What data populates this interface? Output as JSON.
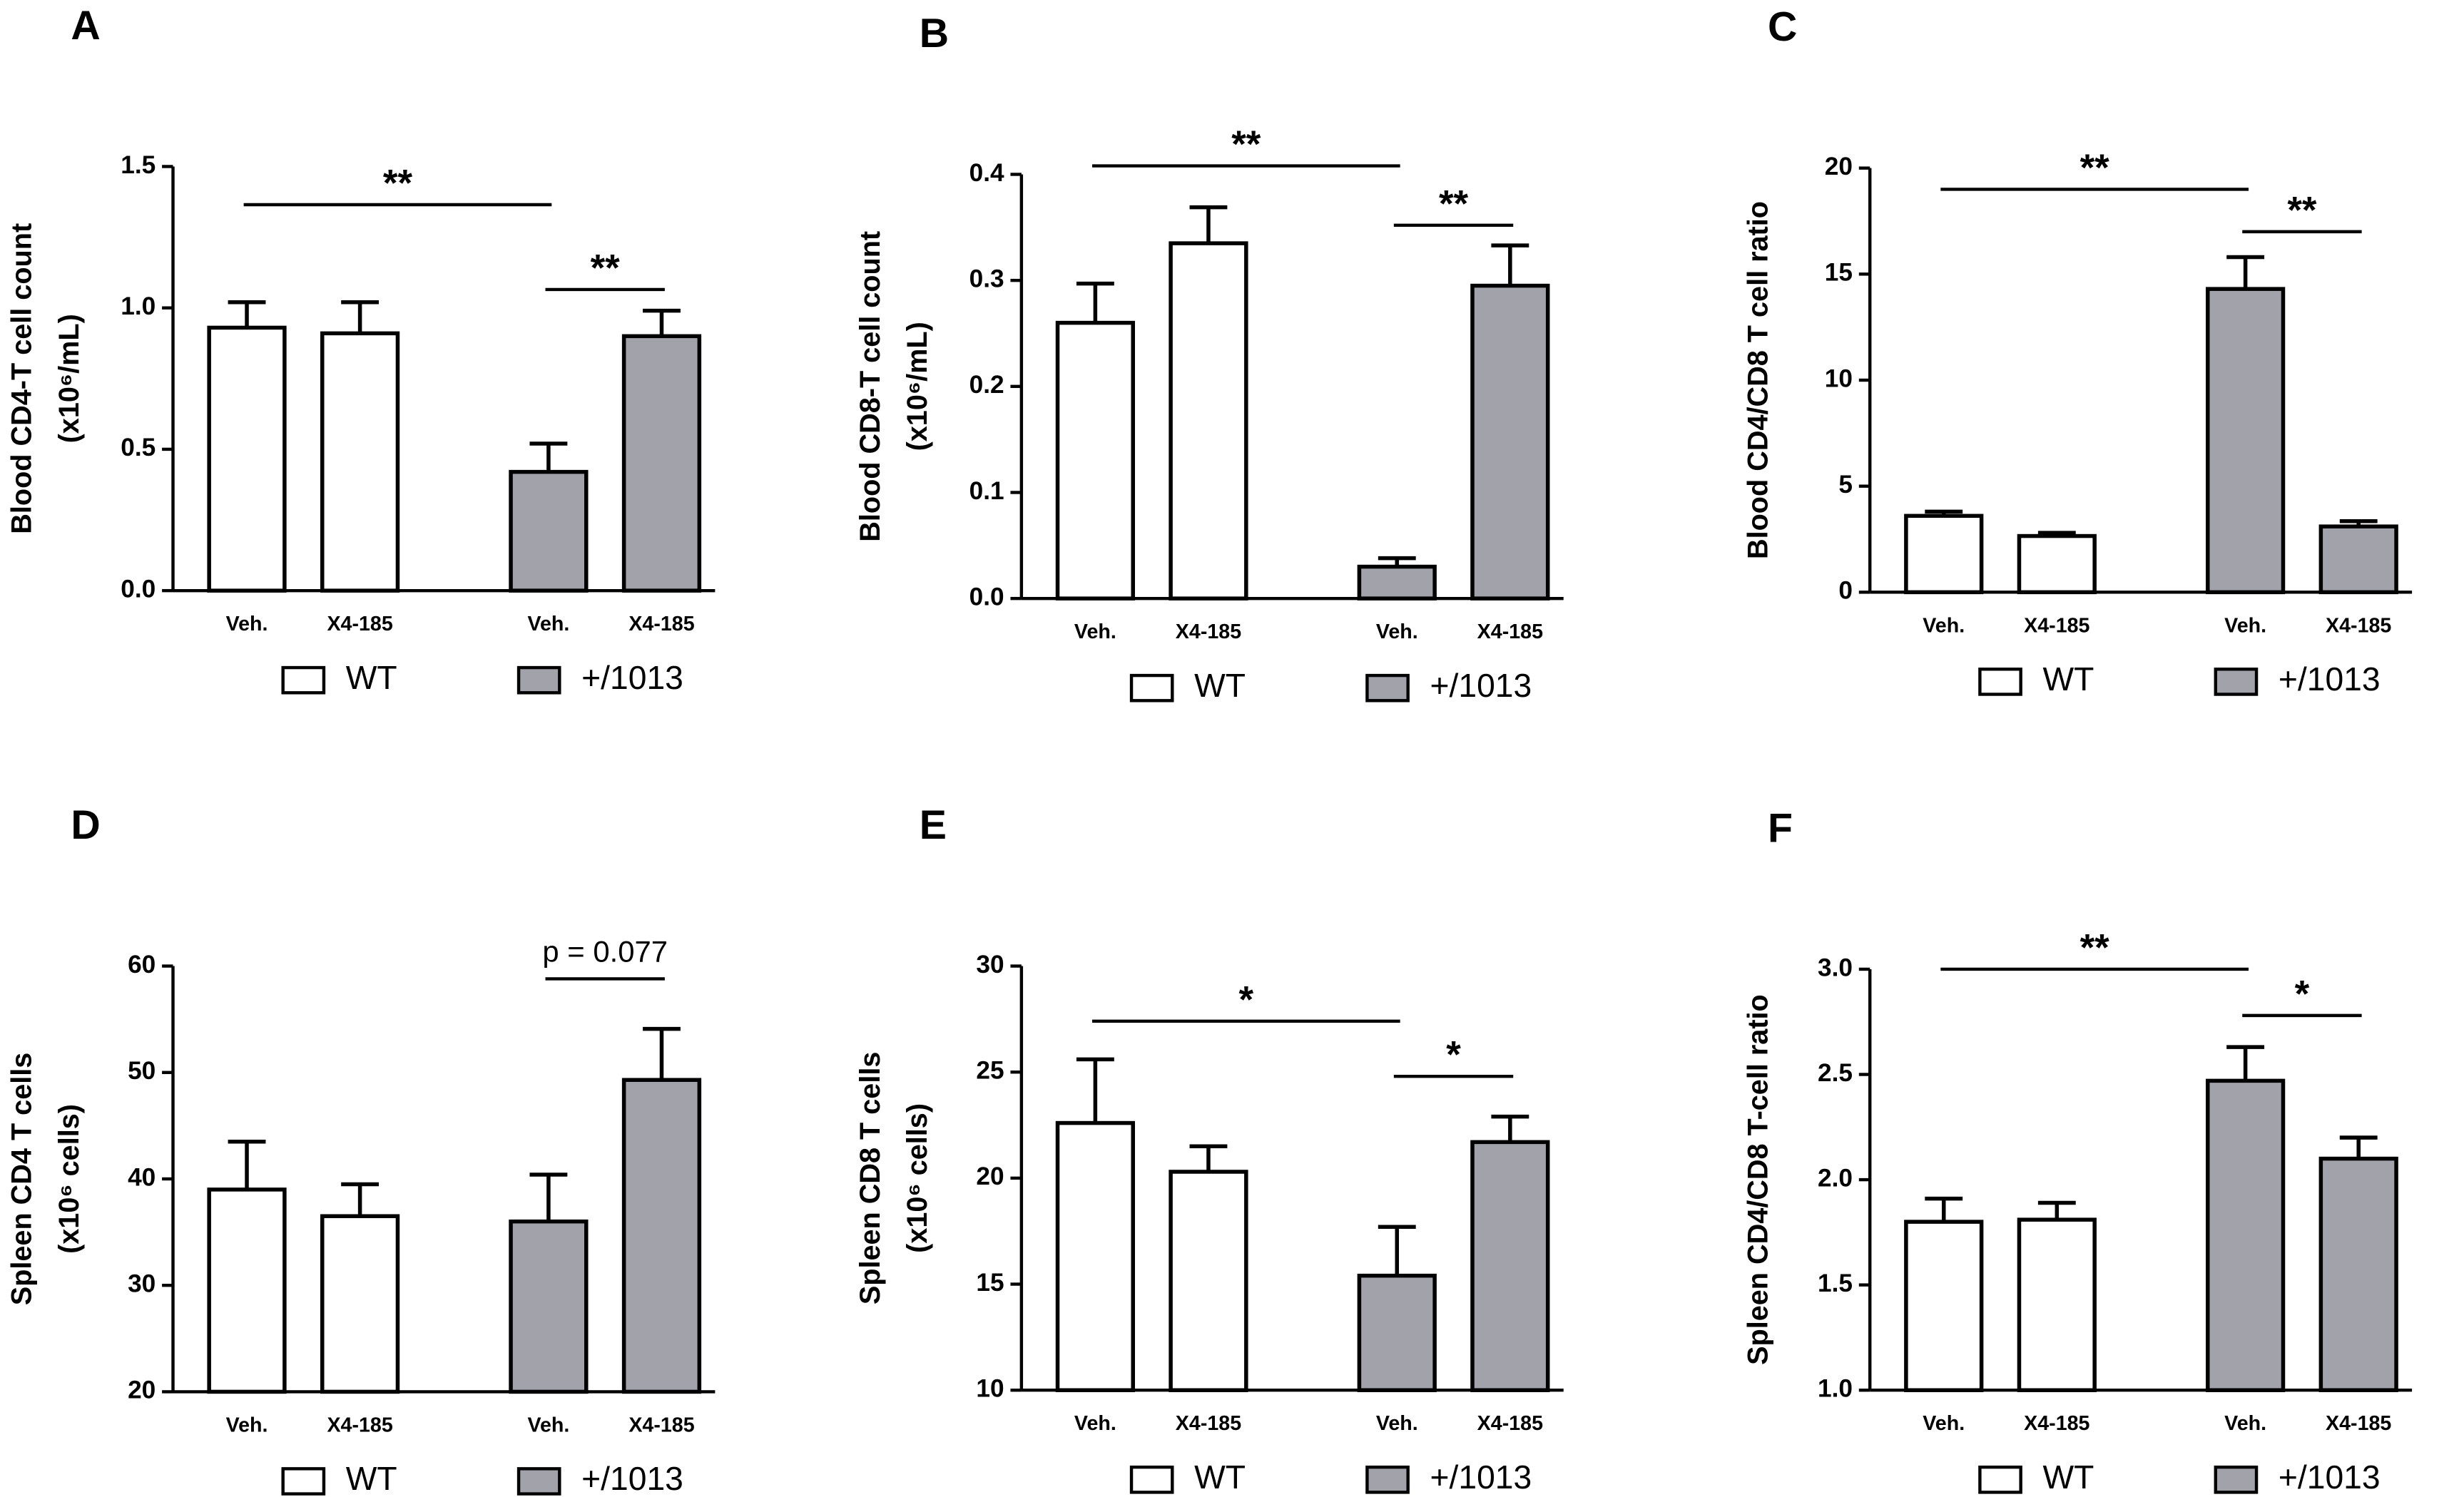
{
  "chart_data": [
    {
      "type": "bar",
      "panel": "A",
      "ylabel": [
        "Blood CD4-T cell count",
        "(x10⁶/mL)"
      ],
      "categories": [
        "Veh.",
        "X4-185"
      ],
      "series": [
        {
          "name": "WT",
          "color": "#ffffff",
          "values": [
            0.93,
            0.91
          ],
          "errors": [
            0.09,
            0.11
          ]
        },
        {
          "name": "+/1013",
          "color": "#a2a2aa",
          "values": [
            0.42,
            0.9
          ],
          "errors": [
            0.1,
            0.09
          ]
        }
      ],
      "ylim": [
        0,
        1.5
      ],
      "yticks": [
        {
          "value": 0,
          "label": "0.0"
        },
        0.5,
        {
          "value": 1,
          "label": "1.0"
        },
        1.5
      ],
      "annotations": [
        "**",
        "**"
      ]
    },
    {
      "type": "bar",
      "panel": "B",
      "ylabel": [
        "Blood CD8-T cell count",
        "(x10⁶/mL)"
      ],
      "categories": [
        "Veh.",
        "X4-185"
      ],
      "series": [
        {
          "name": "WT",
          "color": "#ffffff",
          "values": [
            0.26,
            0.335
          ],
          "errors": [
            0.037,
            0.034
          ]
        },
        {
          "name": "+/1013",
          "color": "#a2a2aa",
          "values": [
            0.03,
            0.295
          ],
          "errors": [
            0.008,
            0.038
          ]
        }
      ],
      "ylim": [
        0,
        0.4
      ],
      "yticks": [
        {
          "value": 0,
          "label": "0.0"
        },
        0.1,
        0.2,
        0.3,
        0.4
      ],
      "annotations": [
        "**",
        "**"
      ]
    },
    {
      "type": "bar",
      "panel": "C",
      "ylabel": [
        "Blood CD4/CD8 T cell ratio"
      ],
      "categories": [
        "Veh.",
        "X4-185"
      ],
      "series": [
        {
          "name": "WT",
          "color": "#ffffff",
          "values": [
            3.6,
            2.65
          ],
          "errors": [
            0.2,
            0.15
          ]
        },
        {
          "name": "+/1013",
          "color": "#a2a2aa",
          "values": [
            14.3,
            3.1
          ],
          "errors": [
            1.5,
            0.25
          ]
        }
      ],
      "ylim": [
        0,
        20
      ],
      "yticks": [
        0,
        5,
        10,
        15,
        20
      ],
      "annotations": [
        "**",
        "**"
      ]
    },
    {
      "type": "bar",
      "panel": "D",
      "ylabel": [
        "Spleen CD4 T cells",
        "(x10⁶ cells)"
      ],
      "categories": [
        "Veh.",
        "X4-185"
      ],
      "series": [
        {
          "name": "WT",
          "color": "#ffffff",
          "values": [
            39,
            36.5
          ],
          "errors": [
            4.5,
            3
          ]
        },
        {
          "name": "+/1013",
          "color": "#a2a2aa",
          "values": [
            36,
            49.3
          ],
          "errors": [
            4.4,
            4.8
          ]
        }
      ],
      "ylim": [
        20,
        60
      ],
      "yticks": [
        20,
        30,
        40,
        50,
        60
      ],
      "annotations": [
        "p = 0.077"
      ]
    },
    {
      "type": "bar",
      "panel": "E",
      "ylabel": [
        "Spleen CD8 T cells",
        "(x10⁶ cells)"
      ],
      "categories": [
        "Veh.",
        "X4-185"
      ],
      "series": [
        {
          "name": "WT",
          "color": "#ffffff",
          "values": [
            22.6,
            20.3
          ],
          "errors": [
            3,
            1.2
          ]
        },
        {
          "name": "+/1013",
          "color": "#a2a2aa",
          "values": [
            15.4,
            21.7
          ],
          "errors": [
            2.3,
            1.2
          ]
        }
      ],
      "ylim": [
        10,
        30
      ],
      "yticks": [
        10,
        15,
        20,
        25,
        30
      ],
      "annotations": [
        "*",
        "*"
      ]
    },
    {
      "type": "bar",
      "panel": "F",
      "ylabel": [
        "Spleen CD4/CD8 T-cell ratio"
      ],
      "categories": [
        "Veh.",
        "X4-185"
      ],
      "series": [
        {
          "name": "WT",
          "color": "#ffffff",
          "values": [
            1.8,
            1.81
          ],
          "errors": [
            0.11,
            0.08
          ]
        },
        {
          "name": "+/1013",
          "color": "#a2a2aa",
          "values": [
            2.47,
            2.1
          ],
          "errors": [
            0.16,
            0.1
          ]
        }
      ],
      "ylim": [
        1,
        3
      ],
      "yticks": [
        {
          "value": 1,
          "label": "1.0"
        },
        1.5,
        {
          "value": 2,
          "label": "2.0"
        },
        2.5,
        {
          "value": 3,
          "label": "3.0"
        }
      ],
      "annotations": [
        "**",
        "*"
      ]
    }
  ]
}
